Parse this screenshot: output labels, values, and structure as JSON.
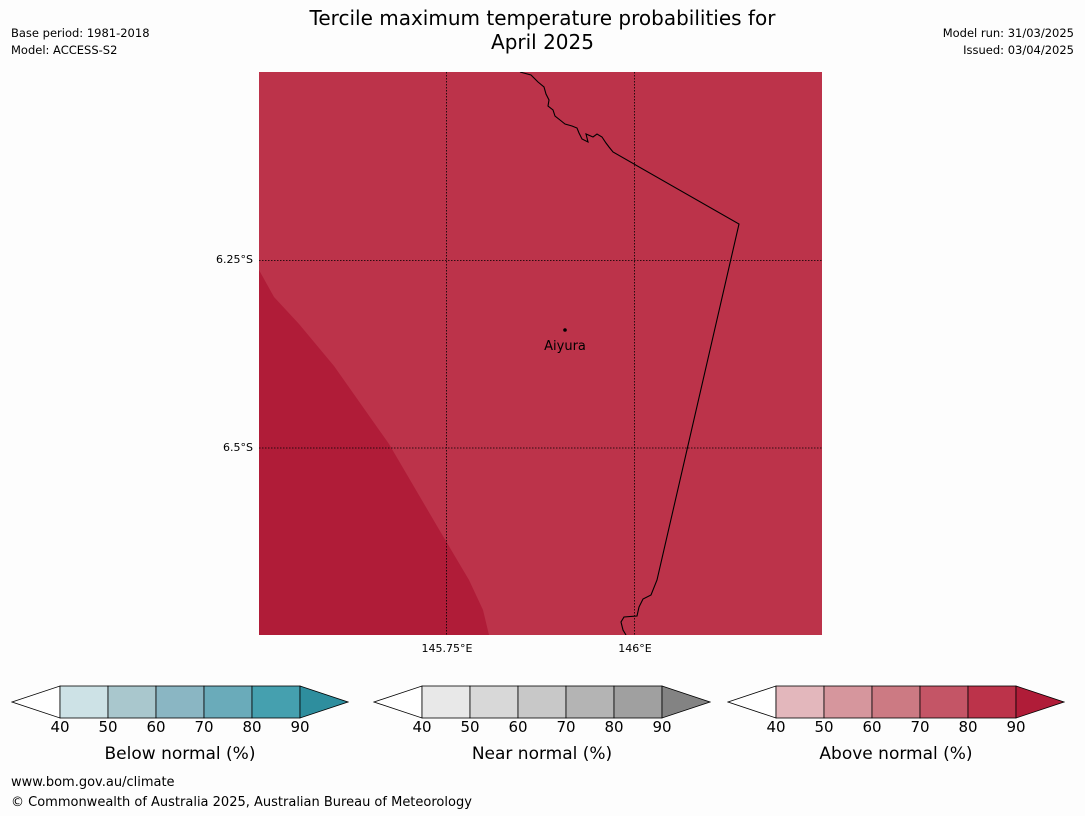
{
  "title_line1": "Tercile maximum temperature probabilities for",
  "title_line2": "April 2025",
  "meta_left": [
    "Base period: 1981-2018",
    "Model: ACCESS-S2"
  ],
  "meta_right": [
    "Model run: 31/03/2025",
    "Issued: 03/04/2025"
  ],
  "map": {
    "lat_labels": [
      "6.25°S",
      "6.5°S"
    ],
    "lon_labels": [
      "145.75°E",
      "146°E"
    ],
    "place": "Aiyura",
    "fill_colors": {
      "above_70_80": "#bc334a",
      "above_80_90": "#b01c38",
      "border": "#000000"
    }
  },
  "colorbars": [
    {
      "label": "Below normal (%)",
      "ticks": [
        "40",
        "50",
        "60",
        "70",
        "80",
        "90"
      ],
      "colors": [
        "#ffffff",
        "#cde2e6",
        "#a9c7cd",
        "#8ab6c3",
        "#6aabba",
        "#45a0af",
        "#2e8e9e"
      ]
    },
    {
      "label": "Near normal (%)",
      "ticks": [
        "40",
        "50",
        "60",
        "70",
        "80",
        "90"
      ],
      "colors": [
        "#ffffff",
        "#e8e8e8",
        "#d8d8d8",
        "#c8c8c8",
        "#b4b4b4",
        "#a0a0a0",
        "#838383"
      ]
    },
    {
      "label": "Above normal (%)",
      "ticks": [
        "40",
        "50",
        "60",
        "70",
        "80",
        "90"
      ],
      "colors": [
        "#ffffff",
        "#e3b7bc",
        "#d6969d",
        "#cc7a83",
        "#c45566",
        "#bc334a",
        "#b01c38"
      ]
    }
  ],
  "footer": [
    "www.bom.gov.au/climate",
    "© Commonwealth of Australia 2025, Australian Bureau of Meteorology"
  ]
}
